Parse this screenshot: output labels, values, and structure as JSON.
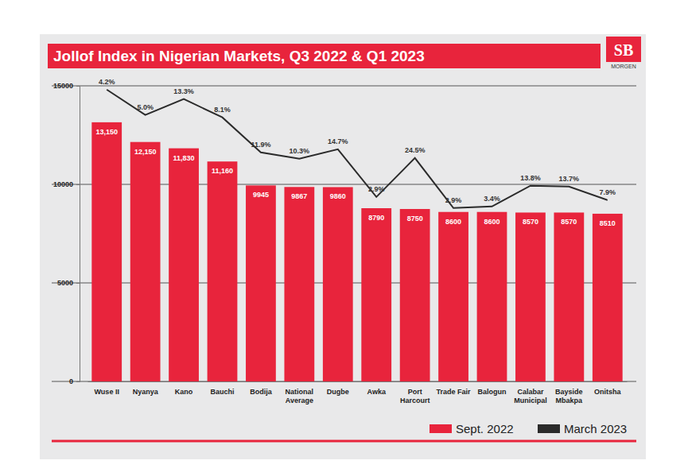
{
  "chart_data": {
    "type": "bar",
    "title": "Jollof Index in Nigerian Markets, Q3 2022 & Q1 2023",
    "logo_text": "SB",
    "logo_subtext": "MORGEN",
    "categories": [
      "Wuse II",
      "Nyanya",
      "Kano",
      "Bauchi",
      "Bodija",
      "National Average",
      "Dugbe",
      "Awka",
      "Port Harcourt",
      "Trade Fair",
      "Balogun",
      "Calabar Municipal",
      "Bayside Mbakpa",
      "Onitsha"
    ],
    "series": [
      {
        "name": "Sept. 2022",
        "type": "bar",
        "color": "#e8243c",
        "data_labels": true,
        "values": [
          13150,
          12150,
          11830,
          11160,
          9945,
          9867,
          9860,
          8790,
          8750,
          8600,
          8600,
          8570,
          8570,
          8510
        ],
        "value_labels": [
          "13,150",
          "12,150",
          "11,830",
          "11,160",
          "9945",
          "9867",
          "9860",
          "8790",
          "8750",
          "8600",
          "8600",
          "8570",
          "8570",
          "8510"
        ]
      },
      {
        "name": "March 2023",
        "type": "line",
        "color": "#2b2b2b",
        "values": [
          14810,
          13520,
          14330,
          13400,
          11620,
          11300,
          11780,
          9360,
          11340,
          8800,
          8880,
          9930,
          9890,
          9200
        ]
      }
    ],
    "annotations": [
      "4.2%",
      "5.0%",
      "13.3%",
      "8.1%",
      "11.9%",
      "10.3%",
      "14.7%",
      "2.9%",
      "24.5%",
      "2.9%",
      "3.4%",
      "13.8%",
      "13.7%",
      "7.9%"
    ],
    "ylim": [
      0,
      15000
    ],
    "yticks": [
      0,
      5000,
      10000,
      15000
    ],
    "grid": true,
    "legend": "bottom-right"
  }
}
